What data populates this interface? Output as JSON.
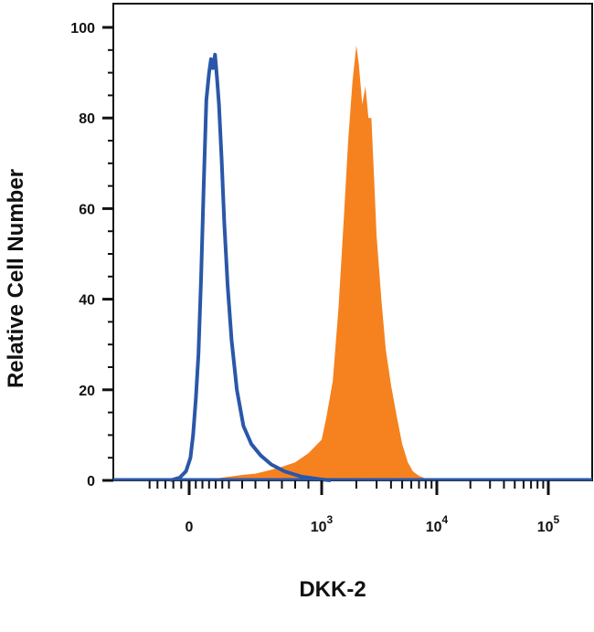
{
  "chart_data": {
    "type": "area",
    "title": "",
    "xlabel": "DKK-2",
    "ylabel": "Relative Cell Number",
    "x_scale": "biexponential",
    "xlim": [
      -300,
      200000
    ],
    "ylim": [
      0,
      100
    ],
    "y_ticks": [
      0,
      20,
      40,
      60,
      80,
      100
    ],
    "x_ticks": [
      {
        "value": 0,
        "base": "0",
        "exp": ""
      },
      {
        "value": 1000,
        "base": "10",
        "exp": "3"
      },
      {
        "value": 10000,
        "base": "10",
        "exp": "4"
      },
      {
        "value": 100000,
        "base": "10",
        "exp": "5"
      }
    ],
    "grid": false,
    "series": [
      {
        "style": "outline",
        "color": "#2a57a8",
        "x": [
          -120,
          -60,
          -20,
          10,
          30,
          50,
          70,
          90,
          110,
          130,
          150,
          165,
          180,
          195,
          210,
          225,
          245,
          265,
          290,
          320,
          360,
          410,
          470,
          540,
          620,
          720,
          850,
          1000,
          1200
        ],
        "y": [
          0,
          0.6,
          2,
          5,
          10,
          18,
          28,
          45,
          65,
          84,
          90,
          93,
          91,
          94,
          89,
          83,
          71,
          57,
          43,
          31,
          20,
          12,
          8,
          5.5,
          3.5,
          2,
          0.8,
          0.2,
          0
        ]
      },
      {
        "style": "filled",
        "color": "#f5821f",
        "x": [
          -150,
          0,
          100,
          200,
          300,
          400,
          500,
          600,
          700,
          800,
          900,
          1000,
          1100,
          1250,
          1400,
          1550,
          1700,
          1850,
          2000,
          2100,
          2250,
          2400,
          2550,
          2700,
          2850,
          3000,
          3300,
          3600,
          4000,
          4500,
          5000,
          5600,
          6200,
          7000,
          7800,
          8500,
          9500
        ],
        "y": [
          0,
          0.2,
          0.3,
          0.4,
          0.8,
          1.2,
          1.5,
          2.2,
          3,
          4,
          6,
          9,
          14,
          22,
          38,
          57,
          75,
          88,
          96,
          92,
          83,
          87,
          80,
          80,
          67,
          54,
          40,
          29,
          21,
          14,
          8,
          4,
          2,
          1,
          0.5,
          0.2,
          0
        ]
      }
    ]
  }
}
